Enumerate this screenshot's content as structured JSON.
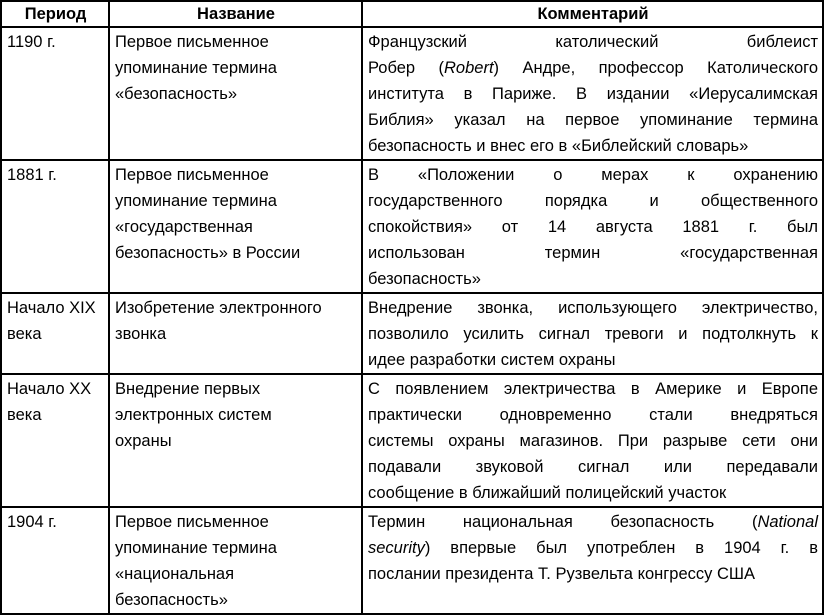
{
  "headers": [
    "Период",
    "Название",
    "Комментарий"
  ],
  "rows": [
    {
      "period": [
        "1190 г."
      ],
      "name": [
        "Первое письменное",
        "упоминание термина",
        "«безопасность»"
      ],
      "comment": [
        [
          {
            "t": "Французский католический библеист"
          }
        ],
        [
          {
            "t": "Робер ("
          },
          {
            "t": "Robert",
            "i": true
          },
          {
            "t": ") Андре, профессор Католического"
          }
        ],
        [
          {
            "t": "института в Париже. В издании «Иерусалимская"
          }
        ],
        [
          {
            "t": "Библия» указал на первое упоминание термина"
          }
        ],
        [
          {
            "t": "безопасность и внес его в «Библейский словарь»"
          }
        ]
      ]
    },
    {
      "period": [
        "1881 г."
      ],
      "name": [
        "Первое письменное",
        "упоминание термина",
        "«государственная",
        "безопасность» в России"
      ],
      "comment": [
        [
          {
            "t": "В «Положении о мерах к охранению"
          }
        ],
        [
          {
            "t": "государственного порядка и общественного"
          }
        ],
        [
          {
            "t": "спокойствия» от 14 августа 1881 г. был"
          }
        ],
        [
          {
            "t": "использован термин «государственная"
          }
        ],
        [
          {
            "t": "безопасность»"
          }
        ]
      ]
    },
    {
      "period": [
        "Начало XIX",
        "века"
      ],
      "name": [
        "Изобретение электронного",
        "звонка"
      ],
      "comment": [
        [
          {
            "t": "Внедрение звонка, использующего электричество,"
          }
        ],
        [
          {
            "t": "позволило усилить сигнал тревоги и подтолкнуть к"
          }
        ],
        [
          {
            "t": "идее разработки систем охраны"
          }
        ]
      ]
    },
    {
      "period": [
        "Начало XX",
        "века"
      ],
      "name": [
        "Внедрение первых",
        "электронных систем",
        "охраны"
      ],
      "comment": [
        [
          {
            "t": "С появлением электричества в Америке и Европе"
          }
        ],
        [
          {
            "t": "практически одновременно стали внедряться"
          }
        ],
        [
          {
            "t": "системы охраны магазинов. При разрыве сети они"
          }
        ],
        [
          {
            "t": "подавали звуковой сигнал или передавали"
          }
        ],
        [
          {
            "t": "сообщение в ближайший полицейский участок"
          }
        ]
      ]
    },
    {
      "period": [
        "1904 г."
      ],
      "name": [
        "Первое письменное",
        "упоминание термина",
        "«национальная",
        "безопасность»"
      ],
      "comment": [
        [
          {
            "t": "Термин национальная безопасность ("
          },
          {
            "t": "National",
            "i": true
          }
        ],
        [
          {
            "t": "security",
            "i": true
          },
          {
            "t": ") впервые был употреблен в 1904 г. в"
          }
        ],
        [
          {
            "t": "послании президента Т. Рузвельта конгрессу США"
          }
        ]
      ]
    }
  ]
}
